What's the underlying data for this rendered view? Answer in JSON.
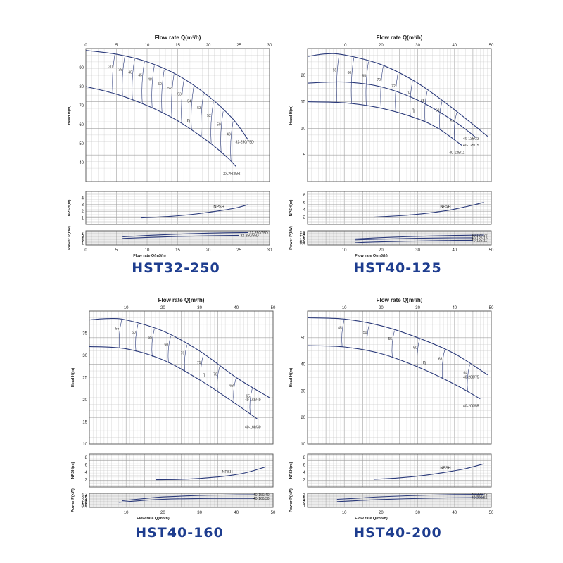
{
  "colors": {
    "curve": "#2b3a7a",
    "grid": "#c8c8c8",
    "gridMajor": "#a0a0a0",
    "frame": "#555555",
    "title": "#1e3d8f"
  },
  "chart_data": [
    {
      "type": "line",
      "model": "HST32-250",
      "top_title": "Flow rate Q(m³/h)",
      "bottom_title": "Flow rate Q(m3/h)",
      "xlim": [
        0,
        30
      ],
      "xticks": [
        "0",
        "5",
        "10",
        "15",
        "20",
        "25",
        "30"
      ],
      "head": {
        "ylabel": "Head H(m)",
        "ylim": [
          30,
          100
        ],
        "yticks": [
          "40",
          "50",
          "60",
          "70",
          "80",
          "90"
        ],
        "series": [
          {
            "name": "32-250/75D",
            "x": [
              0,
              5,
              10,
              15,
              20,
              24,
              26.5
            ],
            "y": [
              99,
              97,
              93,
              86,
              75,
              63,
              52
            ]
          },
          {
            "name": "32-250/55D",
            "x": [
              0,
              5,
              10,
              15,
              20,
              23,
              24.5
            ],
            "y": [
              80,
              76,
              70,
              62,
              51,
              43,
              38
            ]
          }
        ],
        "eff_labels": [
          "30",
          "35",
          "40",
          "45",
          "48",
          "50",
          "52",
          "53",
          "54",
          "53",
          "52",
          "50",
          "48"
        ],
        "eta_label": "η"
      },
      "npsh": {
        "ylabel": "NPSH(m)",
        "ylim": [
          0,
          5
        ],
        "yticks": [
          "1",
          "2",
          "3",
          "4"
        ],
        "series": [
          {
            "name": "NPSH",
            "x": [
              9,
              14,
              18,
              22,
              24.5,
              26.5
            ],
            "y": [
              1.0,
              1.25,
              1.6,
              2.1,
              2.5,
              3.0
            ]
          }
        ]
      },
      "power": {
        "ylabel": "Power P(kW)",
        "ylim": [
          0,
          8.5
        ],
        "yticks": [
          "1",
          "2",
          "3",
          "4",
          "5",
          "6",
          "7"
        ],
        "series": [
          {
            "name": "32-250/75D",
            "x": [
              6,
              10,
              15,
              20,
              26.5
            ],
            "y": [
              4.9,
              5.7,
              6.5,
              7.1,
              7.5
            ]
          },
          {
            "name": "32-250/55D",
            "x": [
              6,
              10,
              15,
              20,
              25
            ],
            "y": [
              3.9,
              4.5,
              5.1,
              5.5,
              5.8
            ]
          }
        ]
      }
    },
    {
      "type": "line",
      "model": "HST40-125",
      "top_title": "Flow rate Q(m³/h)",
      "bottom_title": "Flow rate Q(m3/h)",
      "xlim": [
        0,
        50
      ],
      "xticks": [
        "10",
        "20",
        "30",
        "40",
        "50"
      ],
      "head": {
        "ylabel": "Head H(m)",
        "ylim": [
          0,
          25
        ],
        "yticks": [
          "5",
          "10",
          "15",
          "20"
        ],
        "series": [
          {
            "name": "40-125/22",
            "x": [
              0,
              5,
              10,
              20,
              30,
              40,
              49
            ],
            "y": [
              23.5,
              24,
              23.8,
              22,
              18.5,
              13.5,
              8.5
            ]
          },
          {
            "name": "40-125/15",
            "x": [
              0,
              10,
              20,
              30,
              40,
              46
            ],
            "y": [
              18.5,
              18.7,
              17.8,
              15.3,
              11.3,
              8.2
            ]
          },
          {
            "name": "40-125/11",
            "x": [
              0,
              10,
              20,
              30,
              36,
              42
            ],
            "y": [
              15,
              14.8,
              13.8,
              11.8,
              9.8,
              6.8
            ]
          }
        ],
        "eff_labels": [
          "55",
          "60",
          "65",
          "70",
          "72",
          "70",
          "65",
          "60",
          "55"
        ],
        "eta_label": "η"
      },
      "npsh": {
        "ylabel": "NPSH(m)",
        "ylim": [
          0,
          9
        ],
        "yticks": [
          "2",
          "4",
          "6",
          "8"
        ],
        "series": [
          {
            "name": "NPSH",
            "x": [
              18,
              25,
              32,
              38,
              43,
              48
            ],
            "y": [
              2,
              2.4,
              3,
              3.8,
              4.8,
              6
            ]
          }
        ]
      },
      "power": {
        "ylabel": "Power P(kW)",
        "ylim": [
          0,
          3.2
        ],
        "yticks": [
          "0.4",
          "0.8",
          "1.2",
          "1.6",
          "2",
          "2.4",
          "2.8"
        ],
        "series": [
          {
            "name": "40-125/22",
            "x": [
              13,
              20,
              30,
              40,
              48
            ],
            "y": [
              1.38,
              1.65,
              1.95,
              2.15,
              2.25
            ]
          },
          {
            "name": "40-125/15",
            "x": [
              13,
              20,
              30,
              40,
              45
            ],
            "y": [
              1.15,
              1.32,
              1.5,
              1.6,
              1.62
            ]
          },
          {
            "name": "40-125/11",
            "x": [
              13,
              20,
              30,
              40,
              45
            ],
            "y": [
              0.5,
              0.7,
              0.9,
              1.02,
              1.05
            ]
          }
        ]
      }
    },
    {
      "type": "line",
      "model": "HST40-160",
      "top_title": "Flow rate Q(m³/h)",
      "bottom_title": "Flow rate Q(m3/h)",
      "xlim": [
        0,
        50
      ],
      "xticks": [
        "10",
        "20",
        "30",
        "40",
        "50"
      ],
      "head": {
        "ylabel": "Head H(m)",
        "ylim": [
          10,
          40
        ],
        "yticks": [
          "10",
          "15",
          "20",
          "25",
          "30",
          "35"
        ],
        "series": [
          {
            "name": "40-160/40",
            "x": [
              0,
              5,
              10,
              20,
              30,
              40,
              49
            ],
            "y": [
              38,
              38.3,
              38,
              35.5,
              31,
              25,
              20.5
            ]
          },
          {
            "name": "40-160/30",
            "x": [
              0,
              10,
              20,
              30,
              40,
              46
            ],
            "y": [
              32,
              31.5,
              29,
              24.5,
              19,
              15.5
            ]
          }
        ],
        "eff_labels": [
          "55",
          "60",
          "65",
          "68",
          "70",
          "71",
          "70",
          "68",
          "65"
        ],
        "eta_label": "η"
      },
      "npsh": {
        "ylabel": "NPSH(m)",
        "ylim": [
          0,
          9
        ],
        "yticks": [
          "2",
          "4",
          "6",
          "8"
        ],
        "series": [
          {
            "name": "NPSH",
            "x": [
              18,
              25,
              32,
              38,
              43,
              48
            ],
            "y": [
              2,
              2.1,
              2.5,
              3.1,
              4,
              5.5
            ]
          }
        ]
      },
      "power": {
        "ylabel": "Power P(kW)",
        "ylim": [
          0,
          4.6
        ],
        "yticks": [
          "0.4",
          "0.8",
          "1.2",
          "1.6",
          "2",
          "2.4",
          "3",
          "3.6",
          "4.2"
        ],
        "series": [
          {
            "name": "40-160/40",
            "x": [
              9,
              15,
              20,
              30,
              40,
              45
            ],
            "y": [
              2.2,
              2.9,
              3.4,
              3.9,
              4.1,
              4.15
            ]
          },
          {
            "name": "40-160/30",
            "x": [
              8,
              15,
              20,
              30,
              40,
              45
            ],
            "y": [
              1.65,
              2.3,
              2.65,
              2.9,
              2.95,
              2.95
            ]
          }
        ]
      }
    },
    {
      "type": "line",
      "model": "HST40-200",
      "top_title": "Flow rate Q(m³/h)",
      "bottom_title": "Flow rate Q(m3/h)",
      "xlim": [
        0,
        50
      ],
      "xticks": [
        "10",
        "20",
        "30",
        "40",
        "50"
      ],
      "head": {
        "ylabel": "Head H(m)",
        "ylim": [
          10,
          60
        ],
        "yticks": [
          "10",
          "20",
          "30",
          "40",
          "50"
        ],
        "series": [
          {
            "name": "40-200/75",
            "x": [
              0,
              10,
              20,
              30,
              40,
              49
            ],
            "y": [
              57.5,
              57,
              54.5,
              50,
              44,
              36
            ]
          },
          {
            "name": "40-200/55",
            "x": [
              0,
              10,
              20,
              30,
              40,
              47
            ],
            "y": [
              47,
              46.5,
              44,
              39,
              32.5,
              27
            ]
          }
        ],
        "eff_labels": [
          "45",
          "50",
          "55",
          "60",
          "63",
          "64"
        ],
        "eta_label": "η"
      },
      "npsh": {
        "ylabel": "NPSH(m)",
        "ylim": [
          0,
          9
        ],
        "yticks": [
          "2",
          "4",
          "6",
          "8"
        ],
        "series": [
          {
            "name": "NPSH",
            "x": [
              18,
              25,
              32,
              38,
              43,
              48
            ],
            "y": [
              2.1,
              2.5,
              3.2,
              4.1,
              5,
              6.3
            ]
          }
        ]
      },
      "power": {
        "ylabel": "Power P(kW)",
        "ylim": [
          0,
          8
        ],
        "yticks": [
          "1",
          "2",
          "3",
          "4",
          "5",
          "6",
          "7"
        ],
        "series": [
          {
            "name": "40-200/75",
            "x": [
              8,
              15,
              20,
              30,
              40,
              48
            ],
            "y": [
              4.6,
              5.4,
              6,
              6.8,
              7.3,
              7.4
            ]
          },
          {
            "name": "40-200/55",
            "x": [
              8,
              15,
              20,
              30,
              40,
              48
            ],
            "y": [
              3.3,
              4,
              4.5,
              5.1,
              5.5,
              5.6
            ]
          }
        ]
      }
    }
  ]
}
